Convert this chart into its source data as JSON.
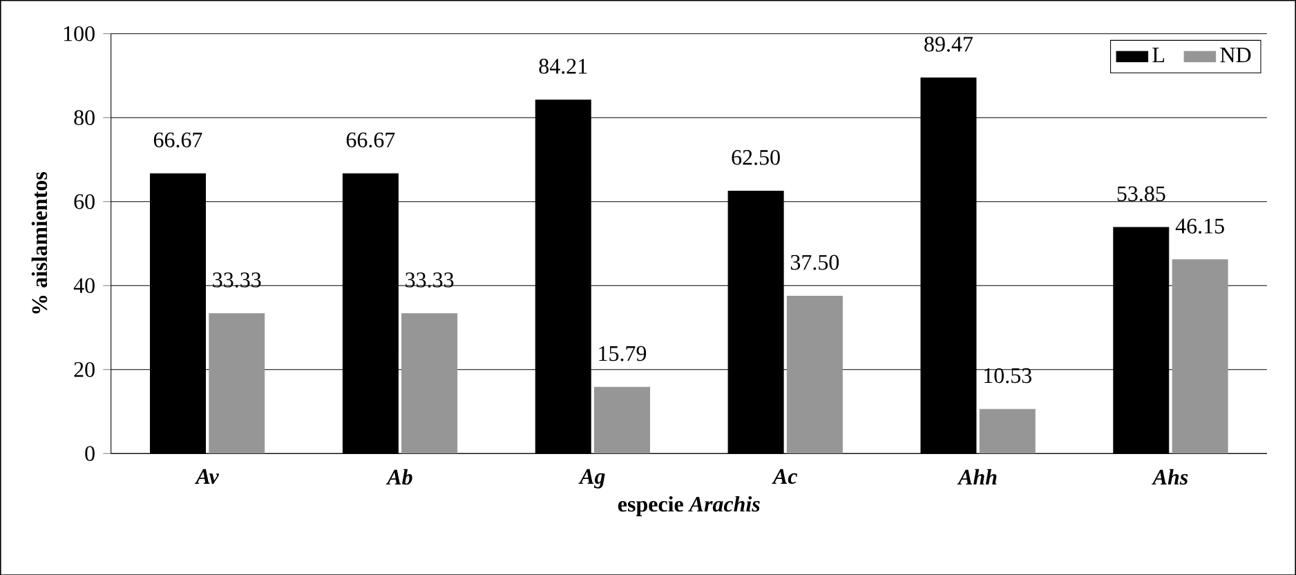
{
  "chart_data": {
    "type": "bar",
    "xlabel": "especie *Arachis*",
    "ylabel": "% aislamientos",
    "categories": [
      "Av",
      "Ab",
      "Ag",
      "Ac",
      "Ahh",
      "Ahs"
    ],
    "series": [
      {
        "name": "L",
        "color": "#000000",
        "values": [
          66.67,
          66.67,
          84.21,
          62.5,
          89.47,
          53.85
        ],
        "value_labels": [
          "66.67",
          "66.67",
          "84.21",
          "62.50",
          "89.47",
          "53.85"
        ]
      },
      {
        "name": "ND",
        "color": "#969696",
        "values": [
          33.33,
          33.33,
          15.79,
          37.5,
          10.53,
          46.15
        ],
        "value_labels": [
          "33.33",
          "33.33",
          "15.79",
          "37.50",
          "10.53",
          "46.15"
        ]
      }
    ],
    "ylim": [
      0,
      100
    ],
    "yticks": [
      0,
      20,
      40,
      60,
      80,
      100
    ],
    "grid": "y",
    "legend": "top right"
  }
}
